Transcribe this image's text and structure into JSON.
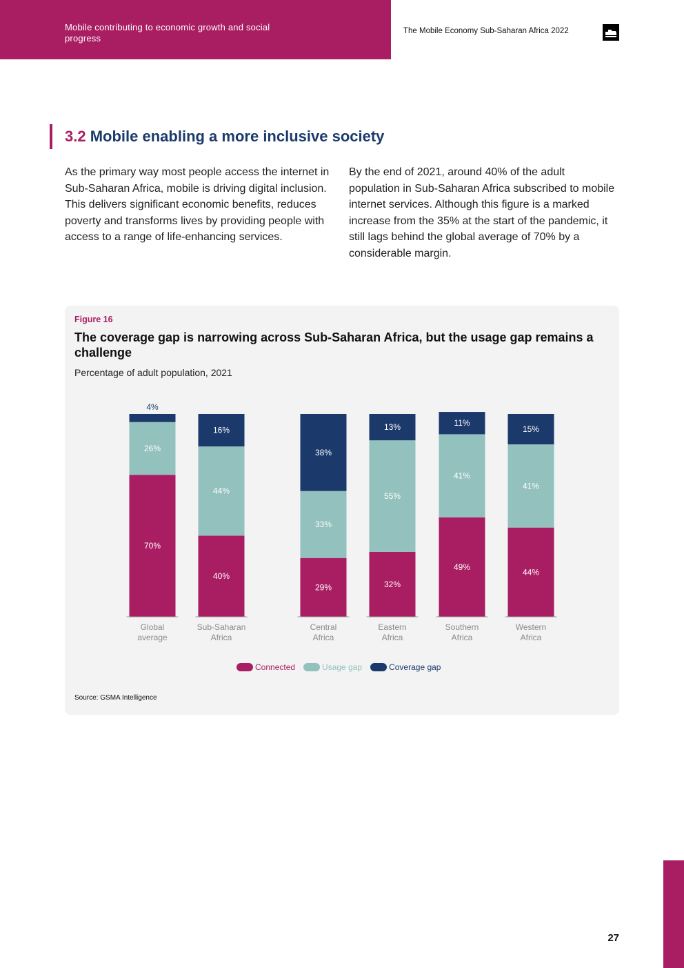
{
  "header": {
    "section_label": "Mobile contributing to economic growth and social progress",
    "document_title": "The Mobile Economy Sub-Saharan Africa 2022",
    "logo_icon": "gsma-logo-icon",
    "band_color": "#a91d62"
  },
  "section": {
    "number": "3.2",
    "title": "Mobile enabling a more inclusive society"
  },
  "body": {
    "paragraph_left": "As the primary way most people access the internet in Sub-Saharan Africa, mobile is driving digital inclusion. This delivers significant economic benefits, reduces poverty and transforms lives by providing people with access to a range of life-enhancing services.",
    "paragraph_right": "By the end of 2021, around 40% of the adult population in Sub-Saharan Africa subscribed to mobile internet services. Although this figure is a marked increase from the 35% at the start of the pandemic, it still lags behind the global average of 70% by a considerable margin."
  },
  "figure": {
    "label": "Figure 16",
    "title": "The coverage gap is narrowing across Sub-Saharan Africa, but the usage gap remains a challenge",
    "subtitle": "Percentage of adult population, 2021",
    "source": "Source: GSMA Intelligence",
    "legend": [
      {
        "name": "Connected",
        "color": "#a91d62"
      },
      {
        "name": "Usage gap",
        "color": "#93c1bd"
      },
      {
        "name": "Coverage gap",
        "color": "#1b3a6b"
      }
    ]
  },
  "chart_data": {
    "type": "bar",
    "stacked": true,
    "title": "The coverage gap is narrowing across Sub-Saharan Africa, but the usage gap remains a challenge",
    "subtitle": "Percentage of adult population, 2021",
    "ylim": [
      0,
      100
    ],
    "unit": "%",
    "categories": [
      [
        "Global",
        "average"
      ],
      [
        "Sub-Saharan",
        "Africa"
      ],
      [
        "Central",
        "Africa"
      ],
      [
        "Eastern",
        "Africa"
      ],
      [
        "Southern",
        "Africa"
      ],
      [
        "Western",
        "Africa"
      ]
    ],
    "series": [
      {
        "name": "Connected",
        "color": "#a91d62",
        "values": [
          70,
          40,
          29,
          32,
          49,
          44
        ]
      },
      {
        "name": "Usage gap",
        "color": "#93c1bd",
        "values": [
          26,
          44,
          33,
          55,
          41,
          41
        ]
      },
      {
        "name": "Coverage gap",
        "color": "#1b3a6b",
        "values": [
          4,
          16,
          38,
          13,
          11,
          15
        ]
      }
    ]
  },
  "page": {
    "number": "27",
    "accent_color": "#a91d62"
  }
}
